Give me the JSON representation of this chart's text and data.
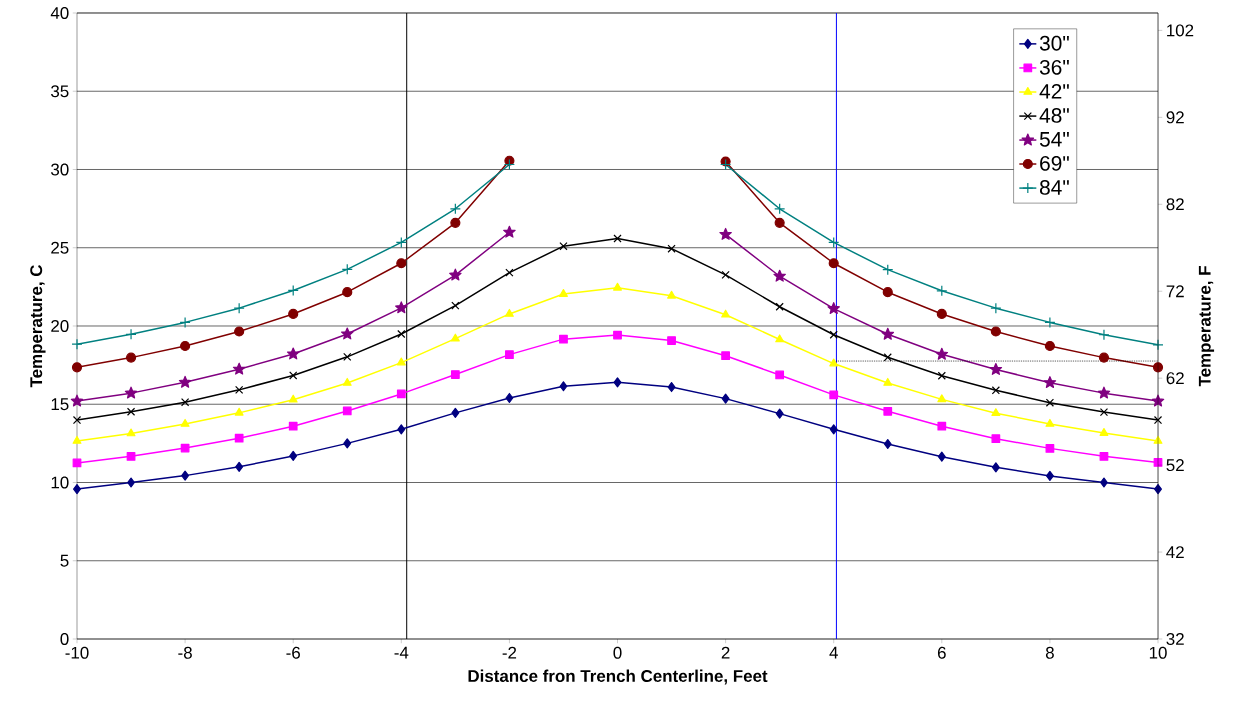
{
  "chart_data": {
    "type": "line",
    "xlabel": "Distance fron Trench Centerline, Feet",
    "ylabel": "Temperature, C",
    "y2label": "Temperature, F",
    "x": [
      -10,
      -9,
      -8,
      -7,
      -6,
      -5,
      -4,
      -3,
      -2,
      -1,
      0,
      1,
      2,
      3,
      4,
      5,
      6,
      7,
      8,
      9,
      10
    ],
    "series": [
      {
        "name": "30\"",
        "color": "#000080",
        "marker": "diamond",
        "values": [
          9.58,
          10.0,
          10.44,
          11.0,
          11.7,
          12.5,
          13.4,
          14.45,
          15.4,
          16.15,
          16.4,
          16.1,
          15.36,
          14.4,
          13.4,
          12.46,
          11.65,
          10.97,
          10.42,
          10.0,
          9.58
        ]
      },
      {
        "name": "36\"",
        "color": "#ff00ff",
        "marker": "square",
        "values": [
          11.25,
          11.67,
          12.2,
          12.83,
          13.6,
          14.57,
          15.66,
          16.9,
          18.17,
          19.16,
          19.42,
          19.07,
          18.1,
          16.87,
          15.6,
          14.55,
          13.6,
          12.8,
          12.18,
          11.67,
          11.28
        ]
      },
      {
        "name": "42\"",
        "color": "#ffff00",
        "marker": "triangle",
        "values": [
          12.65,
          13.13,
          13.74,
          14.45,
          15.29,
          16.36,
          17.66,
          19.19,
          20.77,
          22.04,
          22.44,
          21.93,
          20.72,
          19.14,
          17.6,
          16.36,
          15.31,
          14.43,
          13.74,
          13.16,
          12.65
        ]
      },
      {
        "name": "48\"",
        "color": "#000000",
        "marker": "cross",
        "values": [
          13.99,
          14.52,
          15.13,
          15.92,
          16.84,
          18.03,
          19.49,
          21.3,
          23.41,
          25.1,
          25.59,
          24.94,
          23.27,
          21.23,
          19.44,
          18.0,
          16.82,
          15.89,
          15.1,
          14.5,
          13.99
        ]
      },
      {
        "name": "54\"",
        "color": "#800080",
        "marker": "star",
        "values": [
          15.2,
          15.71,
          16.4,
          17.24,
          18.21,
          19.49,
          21.16,
          23.25,
          25.99,
          null,
          null,
          null,
          25.85,
          23.18,
          21.11,
          19.47,
          18.19,
          17.22,
          16.38,
          15.71,
          15.2
        ]
      },
      {
        "name": "69\"",
        "color": "#800000",
        "marker": "circle",
        "values": [
          17.36,
          17.98,
          18.72,
          19.65,
          20.77,
          22.16,
          24.01,
          26.59,
          30.56,
          null,
          null,
          null,
          30.51,
          26.59,
          24.01,
          22.16,
          20.77,
          19.65,
          18.72,
          17.98,
          17.36
        ]
      },
      {
        "name": "84\"",
        "color": "#008080",
        "marker": "plus",
        "values": [
          18.84,
          19.47,
          20.23,
          21.14,
          22.27,
          23.62,
          25.34,
          27.49,
          30.32,
          null,
          null,
          null,
          30.32,
          27.49,
          25.34,
          23.6,
          22.25,
          21.14,
          20.23,
          19.44,
          18.8
        ]
      },
      {
        "type": "line",
        "color": "#000000",
        "marker": "none",
        "line_style": "dotted",
        "x": [
          4.05,
          10
        ],
        "values": [
          17.76,
          17.76
        ]
      }
    ],
    "ref_lines": [
      {
        "axis": "x",
        "value": -3.9,
        "color": "#000000"
      },
      {
        "axis": "x",
        "value": 4.05,
        "color": "#0000ff"
      }
    ],
    "xlim": [
      -10,
      10
    ],
    "xticks": [
      -10,
      -8,
      -6,
      -4,
      -2,
      0,
      2,
      4,
      6,
      8,
      10
    ],
    "ylim": [
      0,
      40
    ],
    "yticks": [
      0,
      5,
      10,
      15,
      20,
      25,
      30,
      35,
      40
    ],
    "y2lim": [
      32,
      104
    ],
    "y2ticks": [
      32,
      42,
      52,
      62,
      72,
      82,
      92,
      102
    ],
    "grid": "y",
    "legend": "top right"
  }
}
